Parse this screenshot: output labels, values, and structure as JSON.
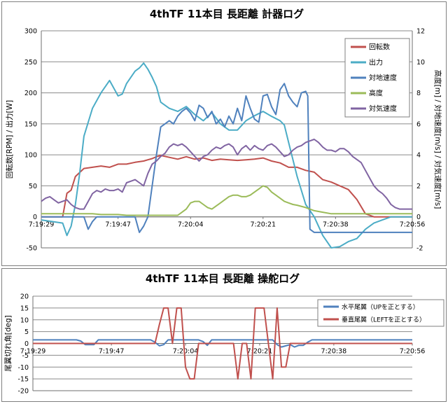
{
  "chart_data": [
    {
      "type": "line",
      "title": "4thTF 11本目 長距離 計器ログ",
      "ylabel": "回転数[RPM] / 出力[W]",
      "y2label": "高度[m] / 対地速度[m/s] / 対気速度[m/s]",
      "xlim": [
        0,
        87
      ],
      "ylim": [
        -50,
        300
      ],
      "y2lim": [
        -2,
        12
      ],
      "yticks": [
        "-50",
        "0",
        "50",
        "100",
        "150",
        "200",
        "250",
        "300"
      ],
      "y2ticks": [
        "-2",
        "0",
        "2",
        "4",
        "6",
        "8",
        "10",
        "12"
      ],
      "xticks": [
        {
          "t": 0,
          "label": "7:19:29"
        },
        {
          "t": 18,
          "label": "7:19:47"
        },
        {
          "t": 35,
          "label": "7:20:04"
        },
        {
          "t": 52,
          "label": "7:20:21"
        },
        {
          "t": 69,
          "label": "7:20:38"
        },
        {
          "t": 87,
          "label": "7:20:56"
        }
      ],
      "legend_position": "top-right",
      "series": [
        {
          "name": "回転数",
          "color": "#c0504d",
          "axis": "left",
          "x": [
            0,
            5,
            6,
            7,
            8,
            10,
            12,
            14,
            16,
            18,
            20,
            22,
            24,
            25,
            26,
            27,
            28,
            30,
            32,
            34,
            36,
            38,
            40,
            42,
            44,
            46,
            48,
            50,
            52,
            54,
            56,
            58,
            60,
            62,
            64,
            66,
            68,
            70,
            72,
            74,
            76,
            78,
            80,
            82,
            84,
            87
          ],
          "y": [
            0,
            0,
            38,
            43,
            65,
            78,
            80,
            82,
            80,
            85,
            85,
            88,
            90,
            92,
            94,
            97,
            99,
            96,
            93,
            97,
            93,
            95,
            91,
            93,
            92,
            91,
            92,
            93,
            95,
            90,
            87,
            80,
            80,
            75,
            72,
            60,
            56,
            50,
            44,
            28,
            5,
            0,
            0,
            0,
            0,
            0
          ]
        },
        {
          "name": "出力",
          "color": "#4bacc6",
          "axis": "left",
          "x": [
            0,
            5,
            6,
            7,
            8,
            9,
            10,
            12,
            14,
            16,
            18,
            19,
            20,
            21,
            22,
            23,
            24,
            25,
            26,
            27,
            28,
            30,
            32,
            34,
            36,
            38,
            40,
            42,
            44,
            46,
            48,
            50,
            52,
            54,
            56,
            57,
            58,
            60,
            62,
            64,
            66,
            68,
            70,
            72,
            74,
            76,
            78,
            80,
            82,
            84,
            87
          ],
          "y": [
            -5,
            -10,
            -30,
            -15,
            20,
            70,
            130,
            175,
            200,
            220,
            195,
            198,
            215,
            225,
            235,
            240,
            248,
            238,
            225,
            210,
            185,
            175,
            170,
            178,
            165,
            155,
            168,
            150,
            140,
            140,
            155,
            163,
            170,
            162,
            155,
            148,
            120,
            65,
            20,
            0,
            -30,
            -50,
            -48,
            -40,
            -35,
            -20,
            -10,
            -5,
            0,
            0,
            0
          ]
        },
        {
          "name": "対地速度",
          "color": "#4f81bd",
          "axis": "right",
          "x": [
            0,
            10,
            11,
            12,
            13,
            14,
            15,
            16,
            17,
            18,
            19,
            20,
            21,
            22,
            23,
            24,
            25,
            26,
            27,
            28,
            29,
            30,
            31,
            32,
            33,
            34,
            35,
            36,
            37,
            38,
            39,
            40,
            41,
            42,
            43,
            44,
            45,
            46,
            47,
            48,
            49,
            50,
            51,
            52,
            53,
            54,
            55,
            56,
            57,
            58,
            59,
            60,
            61,
            62,
            62.5,
            63,
            64,
            65,
            66,
            67,
            68,
            69,
            70,
            72,
            76,
            80,
            84,
            87
          ],
          "y": [
            0,
            0,
            -0.8,
            -0.3,
            0,
            0,
            0,
            0,
            0,
            0,
            0,
            0,
            0,
            0,
            -1,
            -0.6,
            0,
            2,
            4,
            5.8,
            6,
            6.2,
            6.0,
            6.5,
            6.8,
            7.0,
            6.7,
            6.2,
            7.2,
            7.0,
            6.4,
            6.8,
            6.0,
            6.3,
            5.8,
            6.5,
            6.0,
            7.0,
            6.2,
            7.8,
            7.0,
            6.3,
            6.1,
            7.8,
            7.9,
            7.1,
            6.6,
            8.2,
            8.6,
            7.8,
            7.4,
            7.1,
            8.0,
            8.1,
            7.8,
            -0.8,
            -1.0,
            -1.0,
            -1.0,
            -1.0,
            -1.0,
            -1.0,
            -1.0,
            -1.0,
            -1.0,
            -1.0,
            -1.0,
            -1.0
          ]
        },
        {
          "name": "高度",
          "color": "#9bbb59",
          "axis": "right",
          "x": [
            0,
            5,
            8,
            12,
            14,
            18,
            20,
            22,
            24,
            26,
            28,
            30,
            32,
            33,
            34,
            35,
            36,
            37,
            38,
            39,
            40,
            41,
            42,
            44,
            45,
            46,
            47,
            48,
            49,
            50,
            51,
            52,
            53,
            54,
            55,
            56,
            57,
            58,
            59,
            60,
            62,
            64,
            66,
            68,
            70,
            72,
            76,
            80,
            84,
            87
          ],
          "y": [
            0.2,
            0.2,
            0.2,
            0.2,
            0.15,
            0.15,
            0.1,
            0.1,
            0.1,
            0.1,
            0.1,
            0.1,
            0.1,
            0.3,
            0.5,
            0.9,
            1.0,
            1.0,
            0.8,
            0.6,
            0.5,
            0.7,
            0.9,
            1.3,
            1.4,
            1.4,
            1.3,
            1.3,
            1.4,
            1.6,
            1.8,
            2.0,
            1.9,
            1.6,
            1.4,
            1.2,
            1.0,
            0.9,
            0.8,
            0.75,
            0.6,
            0.4,
            0.3,
            0.2,
            0.2,
            0.2,
            0.2,
            0.2,
            0.2,
            0.2
          ]
        },
        {
          "name": "対気速度",
          "color": "#8064a2",
          "axis": "right",
          "x": [
            0,
            1,
            2,
            3,
            4,
            5,
            6,
            7,
            8,
            9,
            10,
            11,
            12,
            13,
            14,
            15,
            16,
            17,
            18,
            19,
            20,
            21,
            22,
            23,
            24,
            25,
            26,
            27,
            28,
            29,
            30,
            31,
            32,
            33,
            34,
            35,
            36,
            37,
            38,
            39,
            40,
            41,
            42,
            43,
            44,
            45,
            46,
            47,
            48,
            49,
            50,
            51,
            52,
            53,
            54,
            55,
            56,
            57,
            58,
            59,
            60,
            61,
            62,
            63,
            64,
            65,
            66,
            67,
            68,
            69,
            70,
            71,
            72,
            73,
            74,
            75,
            76,
            77,
            78,
            79,
            80,
            81,
            82,
            83,
            84,
            85,
            86,
            87
          ],
          "y": [
            1.0,
            1.2,
            1.3,
            1.1,
            0.9,
            1.0,
            1.1,
            0.8,
            0.6,
            0.5,
            0.5,
            1.0,
            1.5,
            1.7,
            1.6,
            1.8,
            1.7,
            1.7,
            1.8,
            1.6,
            2.2,
            2.3,
            2.4,
            2.2,
            2.0,
            2.8,
            3.4,
            3.6,
            3.9,
            4.1,
            4.5,
            4.7,
            4.6,
            4.7,
            4.5,
            4.2,
            3.9,
            3.6,
            3.9,
            4.0,
            4.3,
            4.5,
            4.4,
            4.6,
            4.7,
            4.5,
            4.0,
            4.4,
            4.6,
            4.3,
            4.6,
            4.4,
            4.3,
            4.6,
            4.7,
            4.5,
            4.2,
            3.9,
            4.0,
            4.3,
            4.5,
            4.6,
            4.8,
            4.9,
            5.0,
            4.8,
            4.5,
            4.3,
            4.3,
            4.2,
            4.4,
            4.4,
            4.2,
            3.9,
            3.7,
            3.5,
            3.0,
            2.5,
            2.0,
            1.7,
            1.5,
            1.2,
            0.8,
            0.6,
            0.5,
            0.5,
            0.5,
            0.5
          ]
        }
      ]
    },
    {
      "type": "line",
      "title": "4thTF 11本目 長距離 操舵ログ",
      "ylabel": "尾翼切れ角[deg]",
      "xlim": [
        0,
        87
      ],
      "ylim": [
        -20,
        20
      ],
      "yticks": [
        "-20",
        "-15",
        "-10",
        "-5",
        "0",
        "5",
        "10",
        "15",
        "20"
      ],
      "xticks": [
        {
          "t": 0,
          "label": "7:19:29"
        },
        {
          "t": 18,
          "label": "7:19:47"
        },
        {
          "t": 35,
          "label": "7:20:04"
        },
        {
          "t": 52,
          "label": "7:20:21"
        },
        {
          "t": 69,
          "label": "7:20:38"
        },
        {
          "t": 87,
          "label": "7:20:56"
        }
      ],
      "legend_position": "top-right",
      "series": [
        {
          "name": "水平尾翼（UPを正とする）",
          "color": "#4f81bd",
          "x": [
            0,
            10,
            11,
            12,
            13,
            14,
            15,
            20,
            27,
            28,
            29,
            30,
            31,
            38,
            39,
            40,
            41,
            55,
            56,
            57,
            58,
            59,
            60,
            61,
            62,
            63,
            64,
            65,
            66,
            67,
            68,
            87
          ],
          "y": [
            1.5,
            1.5,
            1.0,
            -0.5,
            -0.5,
            -0.5,
            1.5,
            1.5,
            1.5,
            0.5,
            -1.0,
            -0.5,
            1.5,
            1.5,
            0.8,
            -0.8,
            1.5,
            1.5,
            -0.5,
            -1.5,
            -1.0,
            -0.5,
            -1.5,
            -0.8,
            -0.8,
            0.5,
            1.5,
            1.5,
            1.5,
            1.5,
            1.5,
            1.5
          ]
        },
        {
          "name": "垂直尾翼（LEFTを正とする）",
          "color": "#c0504d",
          "x": [
            0,
            28,
            29,
            30,
            31,
            32,
            33,
            34,
            35,
            36,
            37,
            38,
            39,
            40,
            41,
            42,
            43,
            44,
            45,
            46,
            47,
            48,
            49,
            50,
            51,
            52,
            53,
            54,
            55,
            56,
            57,
            58,
            59,
            60,
            61,
            62,
            63,
            64,
            65,
            66,
            67,
            68,
            69,
            70,
            87
          ],
          "y": [
            0,
            0,
            8,
            15,
            15,
            0,
            15,
            15,
            -10,
            -15,
            -15,
            0,
            0,
            0,
            0,
            0,
            0,
            0,
            0,
            0,
            -15,
            0,
            0,
            -15,
            15,
            15,
            15,
            0,
            -15,
            15,
            -10,
            -10,
            0,
            0,
            0,
            0,
            0,
            0,
            0,
            0,
            0,
            0,
            0,
            0,
            0
          ]
        }
      ]
    }
  ]
}
